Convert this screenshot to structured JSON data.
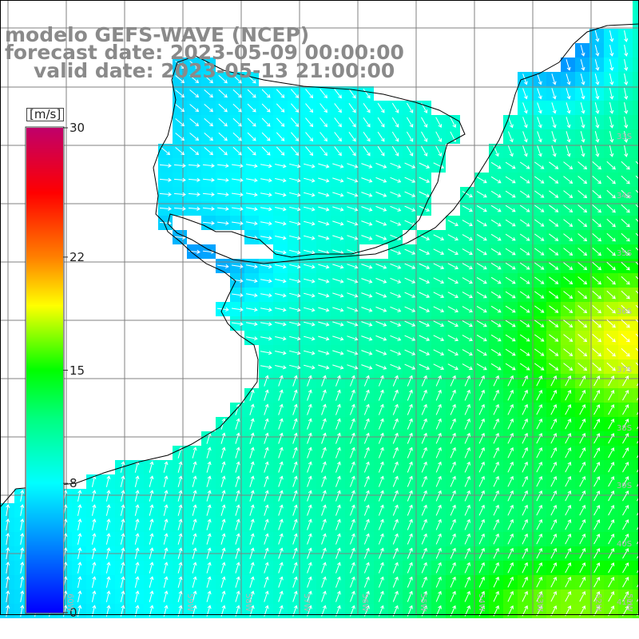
{
  "title": {
    "line1": "modelo GEFS-WAVE (NCEP)",
    "line2": "forecast date: 2023-05-09 00:00:00",
    "line3": "valid date: 2023-05-13 21:00:00"
  },
  "colorbar": {
    "unit": "[m/s]",
    "min": 0,
    "max": 30,
    "tick_labels": [
      "30",
      "22",
      "15",
      "8",
      "0"
    ],
    "tick_values": [
      30,
      22,
      15,
      8,
      0
    ],
    "colors": [
      "#0000ff",
      "#00c8ff",
      "#00ffff",
      "#00ff00",
      "#ffff00",
      "#ff8000",
      "#ff0000",
      "#c0006a"
    ]
  },
  "map": {
    "region": "Rio de la Plata / South Atlantic",
    "lat_labels": [
      "33S",
      "34S",
      "35S",
      "36S",
      "37S",
      "38S",
      "39S",
      "40S",
      "41S"
    ],
    "lon_labels": [
      "60W",
      "59W",
      "58W",
      "57W",
      "56W",
      "55W",
      "54W",
      "53W",
      "52W",
      "51W"
    ],
    "variable": "wind speed and direction"
  }
}
